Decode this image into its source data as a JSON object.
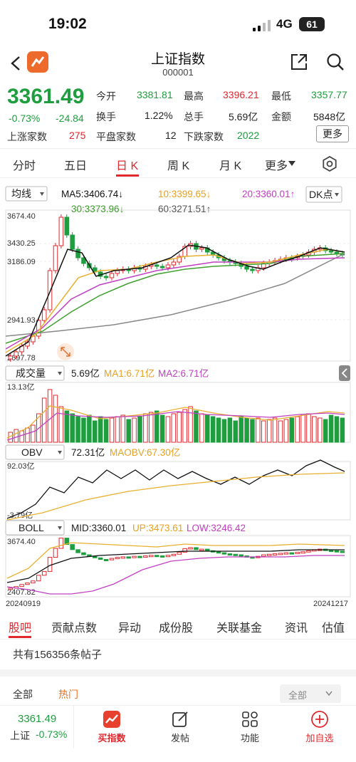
{
  "status_bar": {
    "time": "19:02",
    "network": "4G",
    "battery": "61"
  },
  "header": {
    "title": "上证指数",
    "code": "000001"
  },
  "quote": {
    "price": "3361.49",
    "change_pct": "-0.73%",
    "change": "-24.84",
    "open_label": "今开",
    "open": "3381.81",
    "high_label": "最高",
    "high": "3396.21",
    "low_label": "最低",
    "low": "3357.77",
    "turnover_rate_label": "换手",
    "turnover_rate": "1.22%",
    "volume_label": "总手",
    "volume": "5.69亿",
    "amount_label": "金额",
    "amount": "5848亿",
    "up_label": "上涨家数",
    "up_count": "275",
    "flat_label": "平盘家数",
    "flat_count": "12",
    "down_label": "下跌家数",
    "down_count": "2022",
    "more_label": "更多"
  },
  "period_tabs": [
    {
      "label": "分时"
    },
    {
      "label": "五日"
    },
    {
      "label": "日 K",
      "active": true
    },
    {
      "label": "周 K"
    },
    {
      "label": "月 K"
    },
    {
      "label": "更多"
    }
  ],
  "kline_panel": {
    "type_select": "均线",
    "ma5": "MA5:3406.74↓",
    "ma10": "10:3399.65↓",
    "ma20": "20:3360.01↑",
    "ma30": "30:3373.96↓",
    "ma60": "60:3271.51↑",
    "dk_button": "DK点",
    "y_labels": [
      "3674.40",
      "3430.25",
      "3186.09",
      "2941.93",
      "2697.78"
    ]
  },
  "volume_panel": {
    "select": "成交量",
    "value": "5.69亿",
    "ma1": "MA1:6.71亿",
    "ma2": "MA2:6.71亿",
    "y_top": "13.13亿"
  },
  "obv_panel": {
    "select": "OBV",
    "value": "72.31亿",
    "maobv": "MAOBV:67.30亿",
    "y_top": "92.03亿",
    "y_bottom": "-3.79亿"
  },
  "boll_panel": {
    "select": "BOLL",
    "mid": "MID:3360.01",
    "up": "UP:3473.61",
    "low": "LOW:3246.42",
    "y_top": "3674.40",
    "y_bottom": "2407.82",
    "date_start": "20240919",
    "date_end": "20241217"
  },
  "sub_tabs": [
    {
      "label": "股吧",
      "active": true
    },
    {
      "label": "贡献点数"
    },
    {
      "label": "异动"
    },
    {
      "label": "成份股"
    },
    {
      "label": "关联基金"
    },
    {
      "label": "资讯"
    },
    {
      "label": "估值"
    }
  ],
  "posts": {
    "count_text": "共有156356条帖子"
  },
  "filter": {
    "all": "全部",
    "hot": "热门",
    "select": "全部"
  },
  "bottom_bar": {
    "price": "3361.49",
    "index_name": "上证",
    "change_pct": "-0.73%",
    "buy": "买指数",
    "post": "发帖",
    "function": "功能",
    "add": "加自选"
  },
  "colors": {
    "up": "#e0282e",
    "down": "#1e9e3e",
    "accent": "#f07020",
    "ma5": "#111111",
    "ma10": "#e8b030",
    "ma20": "#c040c0",
    "ma30": "#40a030",
    "ma60": "#888888"
  }
}
